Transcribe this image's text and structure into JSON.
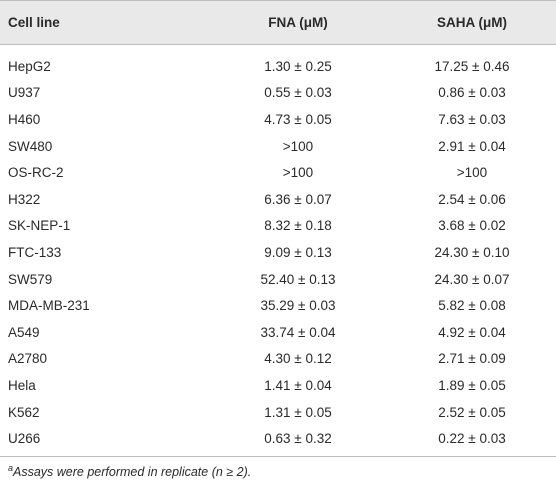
{
  "table": {
    "header": [
      "Cell line",
      "FNA (μM)",
      "SAHA (μM)"
    ],
    "rows": [
      [
        "HepG2",
        "1.30 ± 0.25",
        "17.25 ± 0.46"
      ],
      [
        "U937",
        "0.55 ± 0.03",
        "0.86 ± 0.03"
      ],
      [
        "H460",
        "4.73 ± 0.05",
        "7.63 ± 0.03"
      ],
      [
        "SW480",
        ">100",
        "2.91 ± 0.04"
      ],
      [
        "OS-RC-2",
        ">100",
        ">100"
      ],
      [
        "H322",
        "6.36 ± 0.07",
        "2.54 ± 0.06"
      ],
      [
        "SK-NEP-1",
        "8.32 ± 0.18",
        "3.68 ± 0.02"
      ],
      [
        "FTC-133",
        "9.09 ± 0.13",
        "24.30 ± 0.10"
      ],
      [
        "SW579",
        "52.40 ± 0.13",
        "24.30 ± 0.07"
      ],
      [
        "MDA-MB-231",
        "35.29 ± 0.03",
        "5.82 ± 0.08"
      ],
      [
        "A549",
        "33.74 ± 0.04",
        "4.92 ± 0.04"
      ],
      [
        "A2780",
        "4.30 ± 0.12",
        "2.71 ± 0.09"
      ],
      [
        "Hela",
        "1.41 ± 0.04",
        "1.89 ± 0.05"
      ],
      [
        "K562",
        "1.31 ± 0.05",
        "2.52 ± 0.05"
      ],
      [
        "U266",
        "0.63 ± 0.32",
        "0.22 ± 0.03"
      ]
    ]
  },
  "footnote": {
    "marker": "a",
    "text": "Assays were performed in replicate (n ≥ 2)."
  }
}
